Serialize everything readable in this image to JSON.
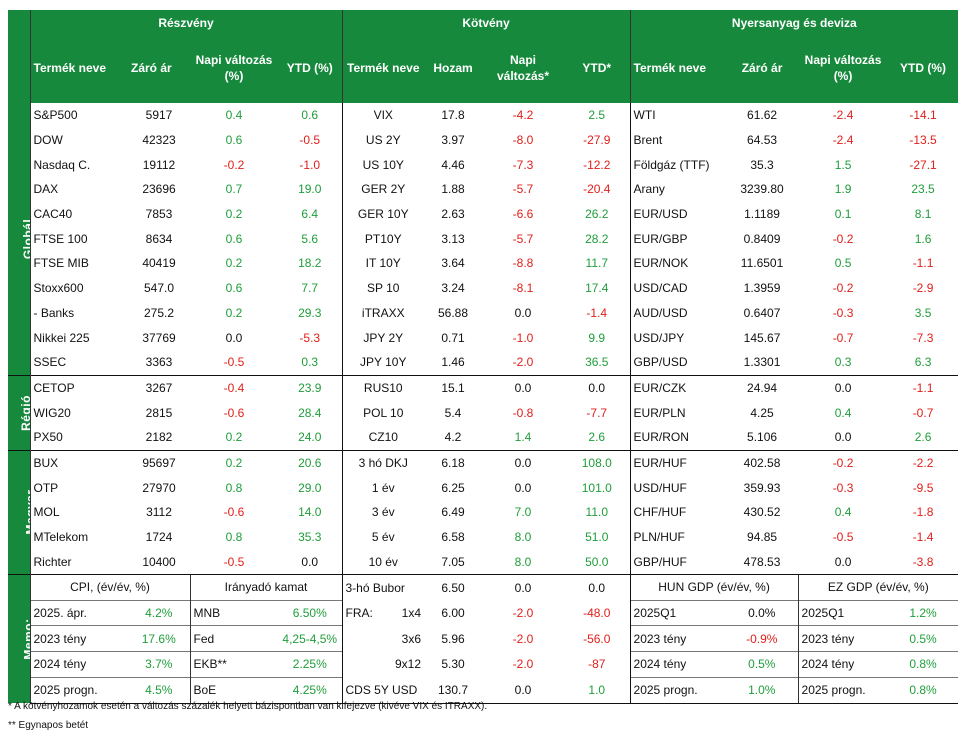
{
  "headers": {
    "equity": "Részvény",
    "bond": "Kötvény",
    "commodity_fx": "Nyersanyag és deviza"
  },
  "columns": {
    "eq": [
      "Termék neve",
      "Záró ár",
      "Napi változás (%)",
      "YTD (%)"
    ],
    "bond": [
      "Termék neve",
      "Hozam",
      "Napi változás*",
      "YTD*"
    ],
    "cx": [
      "Termék neve",
      "Záró ár",
      "Napi változás (%)",
      "YTD (%)"
    ]
  },
  "groups": {
    "global": "Globál",
    "region": "Régió",
    "hungary": "Magyar",
    "memo": "Memo:"
  },
  "rows": [
    {
      "eq": [
        "S&P500",
        "5917",
        "0.4",
        "0.6"
      ],
      "bd": [
        "VIX",
        "17.8",
        "-4.2",
        "2.5"
      ],
      "cx": [
        "WTI",
        "61.62",
        "-2.4",
        "-14.1"
      ]
    },
    {
      "eq": [
        "DOW",
        "42323",
        "0.6",
        "-0.5"
      ],
      "bd": [
        "US 2Y",
        "3.97",
        "-8.0",
        "-27.9"
      ],
      "cx": [
        "Brent",
        "64.53",
        "-2.4",
        "-13.5"
      ]
    },
    {
      "eq": [
        "Nasdaq C.",
        "19112",
        "-0.2",
        "-1.0"
      ],
      "bd": [
        "US 10Y",
        "4.46",
        "-7.3",
        "-12.2"
      ],
      "cx": [
        "Földgáz (TTF)",
        "35.3",
        "1.5",
        "-27.1"
      ]
    },
    {
      "eq": [
        "DAX",
        "23696",
        "0.7",
        "19.0"
      ],
      "bd": [
        "GER 2Y",
        "1.88",
        "-5.7",
        "-20.4"
      ],
      "cx": [
        "Arany",
        "3239.80",
        "1.9",
        "23.5"
      ]
    },
    {
      "eq": [
        "CAC40",
        "7853",
        "0.2",
        "6.4"
      ],
      "bd": [
        "GER 10Y",
        "2.63",
        "-6.6",
        "26.2"
      ],
      "cx": [
        "EUR/USD",
        "1.1189",
        "0.1",
        "8.1"
      ]
    },
    {
      "eq": [
        "FTSE 100",
        "8634",
        "0.6",
        "5.6"
      ],
      "bd": [
        "PT10Y",
        "3.13",
        "-5.7",
        "28.2"
      ],
      "cx": [
        "EUR/GBP",
        "0.8409",
        "-0.2",
        "1.6"
      ]
    },
    {
      "eq": [
        "FTSE MIB",
        "40419",
        "0.2",
        "18.2"
      ],
      "bd": [
        "IT 10Y",
        "3.64",
        "-8.8",
        "11.7"
      ],
      "cx": [
        "EUR/NOK",
        "11.6501",
        "0.5",
        "-1.1"
      ]
    },
    {
      "eq": [
        "Stoxx600",
        "547.0",
        "0.6",
        "7.7"
      ],
      "bd": [
        "SP 10",
        "3.24",
        "-8.1",
        "17.4"
      ],
      "cx": [
        "USD/CAD",
        "1.3959",
        "-0.2",
        "-2.9"
      ]
    },
    {
      "eq": [
        "- Banks",
        "275.2",
        "0.2",
        "29.3"
      ],
      "bd": [
        "iTRAXX",
        "56.88",
        "0.0",
        "-1.4"
      ],
      "cx": [
        "AUD/USD",
        "0.6407",
        "-0.3",
        "3.5"
      ]
    },
    {
      "eq": [
        "Nikkei 225",
        "37769",
        "0.0",
        "-5.3"
      ],
      "bd": [
        "JPY 2Y",
        "0.71",
        "-1.0",
        "9.9"
      ],
      "cx": [
        "USD/JPY",
        "145.67",
        "-0.7",
        "-7.3"
      ]
    },
    {
      "eq": [
        "SSEC",
        "3363",
        "-0.5",
        "0.3"
      ],
      "bd": [
        "JPY 10Y",
        "1.46",
        "-2.0",
        "36.5"
      ],
      "cx": [
        "GBP/USD",
        "1.3301",
        "0.3",
        "6.3"
      ]
    },
    {
      "eq": [
        "CETOP",
        "3267",
        "-0.4",
        "23.9"
      ],
      "bd": [
        "RUS10",
        "15.1",
        "0.0",
        "0.0"
      ],
      "cx": [
        "EUR/CZK",
        "24.94",
        "0.0",
        "-1.1"
      ]
    },
    {
      "eq": [
        "WIG20",
        "2815",
        "-0.6",
        "28.4"
      ],
      "bd": [
        "POL 10",
        "5.4",
        "-0.8",
        "-7.7"
      ],
      "cx": [
        "EUR/PLN",
        "4.25",
        "0.4",
        "-0.7"
      ]
    },
    {
      "eq": [
        "PX50",
        "2182",
        "0.2",
        "24.0"
      ],
      "bd": [
        "CZ10",
        "4.2",
        "1.4",
        "2.6"
      ],
      "cx": [
        "EUR/RON",
        "5.106",
        "0.0",
        "2.6"
      ]
    },
    {
      "eq": [
        "BUX",
        "95697",
        "0.2",
        "20.6"
      ],
      "bd": [
        "3 hó DKJ",
        "6.18",
        "0.0",
        "108.0"
      ],
      "cx": [
        "EUR/HUF",
        "402.58",
        "-0.2",
        "-2.2"
      ]
    },
    {
      "eq": [
        "OTP",
        "27970",
        "0.8",
        "29.0"
      ],
      "bd": [
        "1 év",
        "6.25",
        "0.0",
        "101.0"
      ],
      "cx": [
        "USD/HUF",
        "359.93",
        "-0.3",
        "-9.5"
      ]
    },
    {
      "eq": [
        "MOL",
        "3112",
        "-0.6",
        "14.0"
      ],
      "bd": [
        "3 év",
        "6.49",
        "7.0",
        "11.0"
      ],
      "cx": [
        "CHF/HUF",
        "430.52",
        "0.4",
        "-1.8"
      ]
    },
    {
      "eq": [
        "MTelekom",
        "1724",
        "0.8",
        "35.3"
      ],
      "bd": [
        "5 év",
        "6.58",
        "8.0",
        "51.0"
      ],
      "cx": [
        "PLN/HUF",
        "94.85",
        "-0.5",
        "-1.4"
      ]
    },
    {
      "eq": [
        "Richter",
        "10400",
        "-0.5",
        "0.0"
      ],
      "bd": [
        "10 év",
        "7.05",
        "8.0",
        "50.0"
      ],
      "cx": [
        "GBP/HUF",
        "478.53",
        "0.0",
        "-3.8"
      ]
    }
  ],
  "memo": {
    "cpi_title": "CPI, (év/év, %)",
    "rate_title": "Irányadó kamat",
    "hun_gdp_title": "HUN GDP (év/év, %)",
    "ez_gdp_title": "EZ GDP (év/év, %)",
    "rows": [
      {
        "cpi": [
          "2025. ápr.",
          "4.2%"
        ],
        "rate": [
          "MNB",
          "6.50%"
        ],
        "b0": "FRA:",
        "b1": "1x4",
        "b2": "6.00",
        "b3": "-2.0",
        "b4": "-48.0",
        "hun": [
          "2025Q1",
          "0.0%"
        ],
        "ez": [
          "2025Q1",
          "1.2%"
        ]
      },
      {
        "cpi": [
          "2023 tény",
          "17.6%"
        ],
        "rate": [
          "Fed",
          "4,25-4,5%"
        ],
        "b0": "",
        "b1": "3x6",
        "b2": "5.96",
        "b3": "-2.0",
        "b4": "-56.0",
        "hun": [
          "2023 tény",
          "-0.9%"
        ],
        "ez": [
          "2023 tény",
          "0.5%"
        ]
      },
      {
        "cpi": [
          "2024 tény",
          "3.7%"
        ],
        "rate": [
          "EKB**",
          "2.25%"
        ],
        "b0": "",
        "b1": "9x12",
        "b2": "5.30",
        "b3": "-2.0",
        "b4": "-87",
        "hun": [
          "2024 tény",
          "0.5%"
        ],
        "ez": [
          "2024 tény",
          "0.8%"
        ]
      },
      {
        "cpi": [
          "2025 progn.",
          "4.5%"
        ],
        "rate": [
          "BoE",
          "4.25%"
        ],
        "b0": "CDS 5Y USD",
        "b1": "",
        "b2": "130.7",
        "b3": "0.0",
        "b4": "1.0",
        "hun": [
          "2025 progn.",
          "1.0%"
        ],
        "ez": [
          "2025 progn.",
          "0.8%"
        ]
      }
    ],
    "bubor": {
      "label": "3-hó Bubor",
      "value": "6.50",
      "chg": "0.0",
      "ytd": "0.0"
    }
  },
  "footnotes": [
    "* A kötvényhozamok esetén a változás százalék helyett bázispontban van kifejezve (kivéve VIX és ITRAXX).",
    "** Egynapos betét"
  ],
  "colors": {
    "header_green": "#17893d",
    "positive": "#1f9e3a",
    "negative": "#e0201b"
  }
}
